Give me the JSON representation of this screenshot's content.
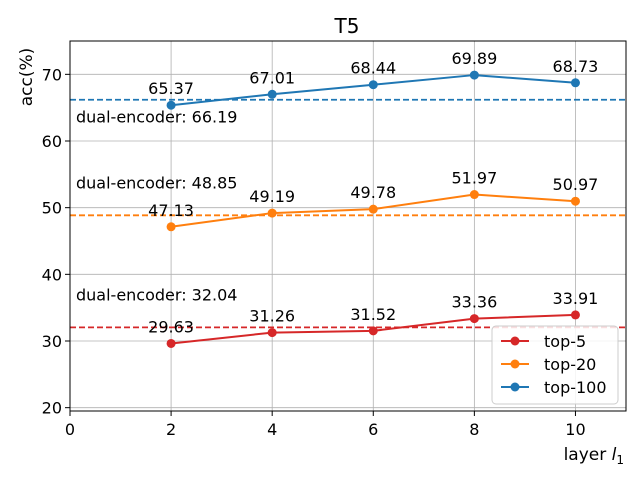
{
  "chart_data": {
    "type": "line",
    "title": "T5",
    "xlabel": "layer",
    "xlabel_symbol": "l",
    "xlabel_subscript": "1",
    "ylabel": "acc(%)",
    "xlim": [
      0,
      11
    ],
    "ylim": [
      19.5,
      75
    ],
    "xticks": [
      0,
      2,
      4,
      6,
      8,
      10
    ],
    "yticks": [
      20,
      30,
      40,
      50,
      60,
      70
    ],
    "grid": true,
    "legend_position": "bottom-right",
    "x": [
      2,
      4,
      6,
      8,
      10
    ],
    "series": [
      {
        "name": "top-5",
        "color": "#d62728",
        "values": [
          29.63,
          31.26,
          31.52,
          33.36,
          33.91
        ],
        "value_labels": [
          "29.63",
          "31.26",
          "31.52",
          "33.36",
          "33.91"
        ],
        "baseline": 32.04,
        "baseline_label": "dual-encoder: 32.04"
      },
      {
        "name": "top-20",
        "color": "#ff7f0e",
        "values": [
          47.13,
          49.19,
          49.78,
          51.97,
          50.97
        ],
        "value_labels": [
          "47.13",
          "49.19",
          "49.78",
          "51.97",
          "50.97"
        ],
        "baseline": 48.85,
        "baseline_label": "dual-encoder: 48.85"
      },
      {
        "name": "top-100",
        "color": "#1f77b4",
        "values": [
          65.37,
          67.01,
          68.44,
          69.89,
          68.73
        ],
        "value_labels": [
          "65.37",
          "67.01",
          "68.44",
          "69.89",
          "68.73"
        ],
        "baseline": 66.19,
        "baseline_label": "dual-encoder: 66.19"
      }
    ]
  }
}
